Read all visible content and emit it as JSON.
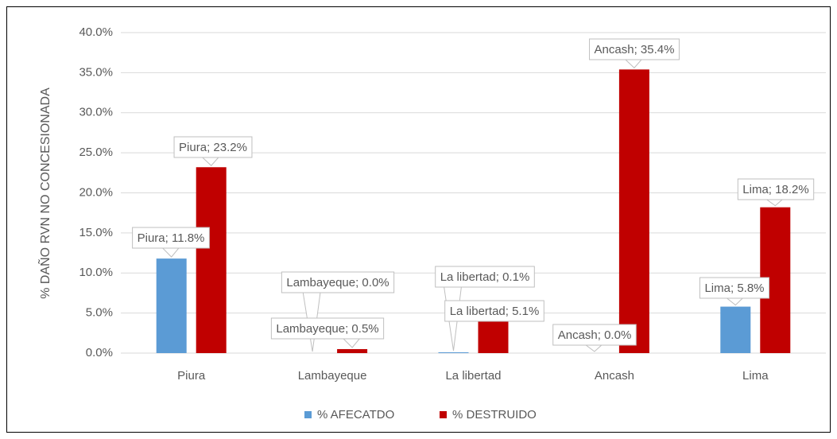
{
  "chart_data": {
    "type": "bar",
    "ylabel": "% DAÑO RVN NO CONCESIONADA",
    "categories": [
      "Piura",
      "Lambayeque",
      "La libertad",
      "Ancash",
      "Lima"
    ],
    "series": [
      {
        "name": "% AFECATDO",
        "color": "#5b9bd5",
        "values": [
          11.8,
          0.0,
          0.1,
          0.0,
          5.8
        ],
        "value_labels": [
          "Piura; 11.8%",
          "Lambayeque; 0.0%",
          "La libertad; 0.1%",
          "Ancash; 0.0%",
          "Lima; 5.8%"
        ]
      },
      {
        "name": "% DESTRUIDO",
        "color": "#c00000",
        "values": [
          23.2,
          0.5,
          5.1,
          35.4,
          18.2
        ],
        "value_labels": [
          "Piura; 23.2%",
          "Lambayeque; 0.5%",
          "La libertad; 5.1%",
          "Ancash; 35.4%",
          "Lima; 18.2%"
        ]
      }
    ],
    "ylim": [
      0,
      40
    ],
    "yticks": [
      {
        "value": 0,
        "label": "0.0%"
      },
      {
        "value": 5,
        "label": "5.0%"
      },
      {
        "value": 10,
        "label": "10.0%"
      },
      {
        "value": 15,
        "label": "15.0%"
      },
      {
        "value": 20,
        "label": "20.0%"
      },
      {
        "value": 25,
        "label": "25.0%"
      },
      {
        "value": 30,
        "label": "30.0%"
      },
      {
        "value": 35,
        "label": "35.0%"
      },
      {
        "value": 40,
        "label": "40.0%"
      }
    ],
    "grid": true,
    "legend": "bottom"
  }
}
